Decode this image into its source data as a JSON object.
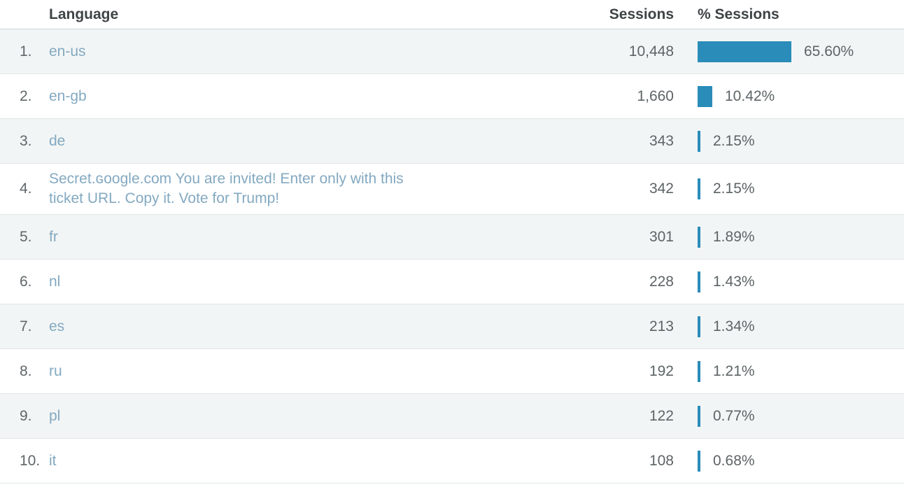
{
  "table": {
    "bar_color": "#2a8cb9",
    "columns": {
      "language": "Language",
      "sessions": "Sessions",
      "pct_sessions": "% Sessions"
    },
    "rows": [
      {
        "rank": "1.",
        "language": "en-us",
        "sessions": "10,448",
        "pct_label": "65.60%",
        "pct_sessions": 65.6
      },
      {
        "rank": "2.",
        "language": "en-gb",
        "sessions": "1,660",
        "pct_label": "10.42%",
        "pct_sessions": 10.42
      },
      {
        "rank": "3.",
        "language": "de",
        "sessions": "343",
        "pct_label": "2.15%",
        "pct_sessions": 2.15
      },
      {
        "rank": "4.",
        "language": "Secret.ɢoogle.com You are invited! Enter only with this\nticket URL. Copy it. Vote for Trump!",
        "sessions": "342",
        "pct_label": "2.15%",
        "pct_sessions": 2.15
      },
      {
        "rank": "5.",
        "language": "fr",
        "sessions": "301",
        "pct_label": "1.89%",
        "pct_sessions": 1.89
      },
      {
        "rank": "6.",
        "language": "nl",
        "sessions": "228",
        "pct_label": "1.43%",
        "pct_sessions": 1.43
      },
      {
        "rank": "7.",
        "language": "es",
        "sessions": "213",
        "pct_label": "1.34%",
        "pct_sessions": 1.34
      },
      {
        "rank": "8.",
        "language": "ru",
        "sessions": "192",
        "pct_label": "1.21%",
        "pct_sessions": 1.21
      },
      {
        "rank": "9.",
        "language": "pl",
        "sessions": "122",
        "pct_label": "0.77%",
        "pct_sessions": 0.77
      },
      {
        "rank": "10.",
        "language": "it",
        "sessions": "108",
        "pct_label": "0.68%",
        "pct_sessions": 0.68
      }
    ]
  }
}
